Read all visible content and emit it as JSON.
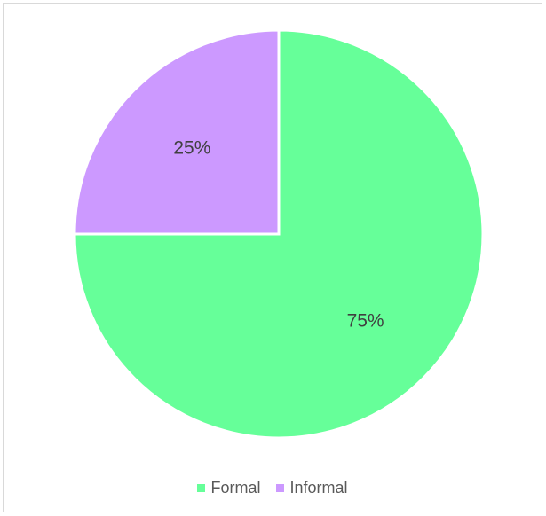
{
  "chart_data": {
    "type": "pie",
    "categories": [
      "Formal",
      "Informal"
    ],
    "values": [
      75,
      25
    ],
    "data_labels": [
      "75%",
      "25%"
    ],
    "colors": [
      "#66ff99",
      "#cc99ff"
    ],
    "legend_position": "bottom",
    "start_angle": "12 o'clock",
    "direction": "clockwise"
  }
}
